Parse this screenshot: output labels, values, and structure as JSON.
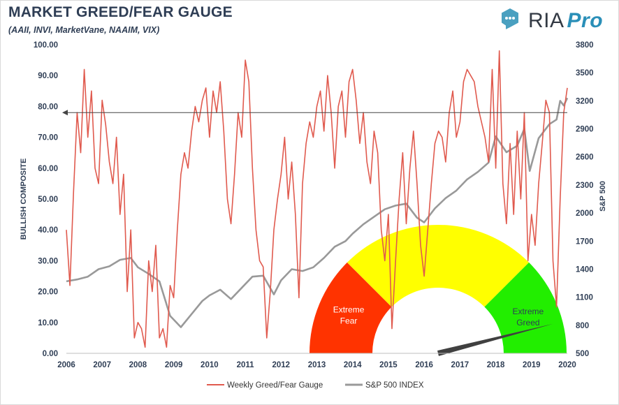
{
  "header": {
    "title": "MARKET GREED/FEAR GAUGE",
    "subtitle": "(AAII, INVI, MarketVane, NAAIM, VIX)"
  },
  "logo": {
    "brand": "RIA",
    "suffix": "Pro",
    "icon": "chat-bubble-icon"
  },
  "colors": {
    "greed_fear_line": "#e05a4e",
    "sp500_line": "#999999",
    "gauge_fear": "#ff3300",
    "gauge_neutral": "#ffff00",
    "gauge_greed": "#22ee00",
    "needle": "#404040",
    "axis_text": "#2f3e55"
  },
  "chart_data": {
    "type": "line",
    "title": "MARKET GREED/FEAR GAUGE",
    "subtitle": "(AAII, INVI, MarketVane, NAAIM, VIX)",
    "xlabel": "",
    "ylabel": "BULLISH COMPOSITE",
    "y2label": "S&P 500",
    "x_tick_labels": [
      "2006",
      "2007",
      "2008",
      "2009",
      "2010",
      "2011",
      "2012",
      "2013",
      "2014",
      "2015",
      "2016",
      "2017",
      "2018",
      "2019",
      "2020"
    ],
    "y_tick_labels": [
      "0.00",
      "10.00",
      "20.00",
      "30.00",
      "40.00",
      "50.00",
      "60.00",
      "70.00",
      "80.00",
      "90.00",
      "100.00"
    ],
    "y2_tick_labels": [
      "500",
      "800",
      "1100",
      "1400",
      "1700",
      "2000",
      "2300",
      "2600",
      "2900",
      "3200",
      "3500",
      "3800"
    ],
    "xlim": [
      2006,
      2020
    ],
    "ylim": [
      0,
      100
    ],
    "y2lim": [
      500,
      3800
    ],
    "grid": false,
    "legend_position": "bottom",
    "reference_line": {
      "y": 78,
      "axis": "left",
      "arrow": "left"
    },
    "series": [
      {
        "name": "Weekly Greed/Fear Gauge",
        "axis": "left",
        "x": [
          2006.0,
          2006.1,
          2006.2,
          2006.3,
          2006.4,
          2006.5,
          2006.6,
          2006.7,
          2006.8,
          2006.9,
          2007.0,
          2007.1,
          2007.2,
          2007.3,
          2007.4,
          2007.5,
          2007.6,
          2007.7,
          2007.8,
          2007.9,
          2008.0,
          2008.1,
          2008.2,
          2008.3,
          2008.4,
          2008.5,
          2008.6,
          2008.7,
          2008.8,
          2008.9,
          2009.0,
          2009.1,
          2009.2,
          2009.3,
          2009.4,
          2009.5,
          2009.6,
          2009.7,
          2009.8,
          2009.9,
          2010.0,
          2010.1,
          2010.2,
          2010.3,
          2010.4,
          2010.5,
          2010.6,
          2010.7,
          2010.8,
          2010.9,
          2011.0,
          2011.1,
          2011.2,
          2011.3,
          2011.4,
          2011.5,
          2011.6,
          2011.7,
          2011.8,
          2011.9,
          2012.0,
          2012.1,
          2012.2,
          2012.3,
          2012.4,
          2012.5,
          2012.6,
          2012.7,
          2012.8,
          2012.9,
          2013.0,
          2013.1,
          2013.2,
          2013.3,
          2013.4,
          2013.5,
          2013.6,
          2013.7,
          2013.8,
          2013.9,
          2014.0,
          2014.1,
          2014.2,
          2014.3,
          2014.4,
          2014.5,
          2014.6,
          2014.7,
          2014.8,
          2014.9,
          2015.0,
          2015.1,
          2015.2,
          2015.3,
          2015.4,
          2015.5,
          2015.6,
          2015.7,
          2015.8,
          2015.9,
          2016.0,
          2016.1,
          2016.2,
          2016.3,
          2016.4,
          2016.5,
          2016.6,
          2016.7,
          2016.8,
          2016.9,
          2017.0,
          2017.1,
          2017.2,
          2017.3,
          2017.4,
          2017.5,
          2017.6,
          2017.7,
          2017.8,
          2017.9,
          2018.0,
          2018.1,
          2018.2,
          2018.3,
          2018.4,
          2018.5,
          2018.6,
          2018.7,
          2018.8,
          2018.9,
          2019.0,
          2019.1,
          2019.2,
          2019.3,
          2019.4,
          2019.5,
          2019.6,
          2019.7,
          2019.8,
          2019.9,
          2020.0
        ],
        "values": [
          40,
          22,
          52,
          78,
          65,
          92,
          70,
          85,
          60,
          55,
          82,
          74,
          62,
          55,
          70,
          45,
          58,
          20,
          40,
          5,
          10,
          8,
          2,
          30,
          20,
          35,
          5,
          8,
          2,
          22,
          18,
          40,
          58,
          65,
          60,
          72,
          80,
          75,
          82,
          86,
          70,
          85,
          78,
          88,
          72,
          50,
          42,
          58,
          78,
          70,
          95,
          88,
          60,
          40,
          30,
          28,
          5,
          20,
          40,
          50,
          58,
          70,
          50,
          62,
          45,
          18,
          55,
          68,
          75,
          70,
          80,
          85,
          72,
          90,
          78,
          60,
          80,
          85,
          70,
          88,
          92,
          82,
          68,
          78,
          62,
          55,
          72,
          65,
          40,
          30,
          45,
          8,
          30,
          50,
          65,
          42,
          60,
          72,
          55,
          35,
          25,
          40,
          55,
          68,
          72,
          70,
          62,
          78,
          85,
          70,
          75,
          88,
          92,
          90,
          88,
          80,
          75,
          70,
          62,
          92,
          60,
          98,
          55,
          42,
          68,
          45,
          72,
          50,
          78,
          30,
          45,
          35,
          55,
          68,
          82,
          78,
          30,
          15,
          50,
          78,
          86
        ]
      },
      {
        "name": "S&P 500 INDEX",
        "axis": "right",
        "x": [
          2006.0,
          2006.3,
          2006.6,
          2006.9,
          2007.2,
          2007.5,
          2007.8,
          2008.0,
          2008.3,
          2008.6,
          2008.9,
          2009.2,
          2009.5,
          2009.8,
          2010.0,
          2010.3,
          2010.6,
          2010.9,
          2011.2,
          2011.5,
          2011.8,
          2012.0,
          2012.3,
          2012.6,
          2012.9,
          2013.2,
          2013.5,
          2013.8,
          2014.0,
          2014.3,
          2014.6,
          2014.9,
          2015.2,
          2015.5,
          2015.8,
          2016.0,
          2016.3,
          2016.6,
          2016.9,
          2017.2,
          2017.5,
          2017.8,
          2018.0,
          2018.3,
          2018.6,
          2018.8,
          2018.95,
          2019.2,
          2019.5,
          2019.7,
          2019.8,
          2019.9,
          2020.0
        ],
        "values": [
          1270,
          1290,
          1320,
          1400,
          1430,
          1500,
          1520,
          1420,
          1350,
          1270,
          900,
          780,
          920,
          1060,
          1120,
          1180,
          1080,
          1200,
          1320,
          1330,
          1130,
          1280,
          1400,
          1380,
          1420,
          1520,
          1640,
          1700,
          1780,
          1880,
          1960,
          2040,
          2080,
          2100,
          1950,
          1900,
          2050,
          2160,
          2240,
          2360,
          2440,
          2540,
          2820,
          2650,
          2720,
          2900,
          2450,
          2800,
          2950,
          3000,
          3200,
          3150,
          3230
        ]
      }
    ],
    "annotations": [
      "Extreme Fear",
      "Extreme Greed"
    ]
  },
  "gauge": {
    "fear_label_line1": "Extreme",
    "fear_label_line2": "Fear",
    "greed_label_line1": "Extreme",
    "greed_label_line2": "Greed",
    "needle_value": 0.92
  }
}
